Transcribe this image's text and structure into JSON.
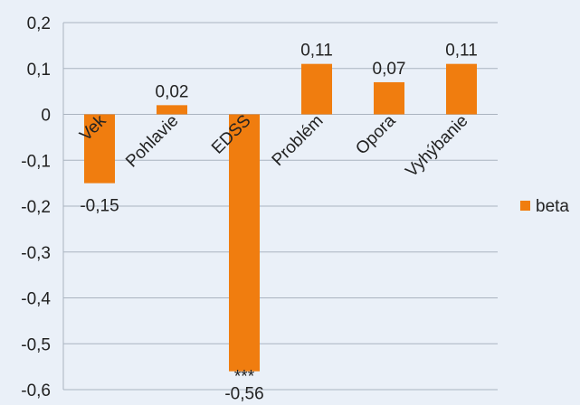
{
  "chart_data": {
    "type": "bar",
    "categories": [
      "Vek",
      "Pohlavie",
      "EDSS",
      "Problém",
      "Opora",
      "Vyhýbanie"
    ],
    "series": [
      {
        "name": "beta",
        "color": "#f07d0f",
        "values": [
          -0.15,
          0.02,
          -0.56,
          0.11,
          0.07,
          0.11
        ],
        "labels": [
          "-0,15",
          "0,02",
          "-0,56",
          "0,11",
          "0,07",
          "0,11"
        ],
        "annotations": [
          "",
          "",
          "***",
          "",
          "",
          ""
        ]
      }
    ],
    "ylim": [
      -0.6,
      0.2
    ],
    "yticks": [
      0.2,
      0.1,
      0,
      -0.1,
      -0.2,
      -0.3,
      -0.4,
      -0.5,
      -0.6
    ],
    "ytick_labels": [
      "0,2",
      "0,1",
      "0",
      "-0,1",
      "-0,2",
      "-0,3",
      "-0,4",
      "-0,5",
      "-0,6"
    ],
    "title": "",
    "xlabel": "",
    "ylabel": "",
    "grid": true,
    "legend_position": "right",
    "category_label_rotation_deg": -45,
    "colors": {
      "background": "#eaf0f8",
      "grid": "#aab4c0",
      "text": "#222222"
    }
  }
}
